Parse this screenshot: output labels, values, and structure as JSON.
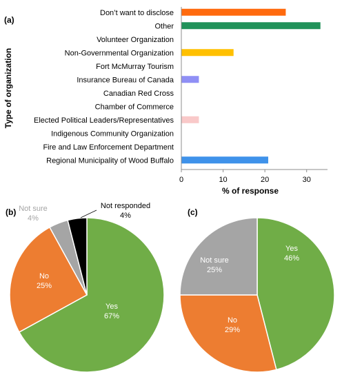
{
  "panels": {
    "a": {
      "label": "(a)",
      "chart_data": {
        "type": "bar",
        "orientation": "horizontal",
        "categories": [
          "Don’t want to disclose",
          "Other",
          "Volunteer Organization",
          "Non-Governmental Organization",
          "Fort McMurray Tourism",
          "Insurance Bureau of Canada",
          "Canadian Red Cross",
          "Chamber of Commerce",
          "Elected Political Leaders/Representatives",
          "Indigenous Community Organization",
          "Fire and Law Enforcement Department",
          "Regional Municipality of Wood Buffalo"
        ],
        "values": [
          25,
          33.3,
          0,
          12.5,
          0,
          4.2,
          0,
          0,
          4.2,
          0,
          0,
          20.8
        ],
        "colors": [
          "#ff6a0e",
          "#21925a",
          "#cccccc",
          "#ffc000",
          "#cccccc",
          "#8f8ff5",
          "#cccccc",
          "#cccccc",
          "#f9c9c9",
          "#cccccc",
          "#cccccc",
          "#3f92ea"
        ],
        "xlabel": "% of response",
        "ylabel": "Type of organization",
        "xlim": [
          0,
          35
        ],
        "xticks": [
          0,
          10,
          20,
          30
        ],
        "grid": false
      }
    },
    "b": {
      "label": "(b)",
      "chart_data": {
        "type": "pie",
        "slices": [
          {
            "name": "Yes",
            "percent_label": "67%",
            "value": 67,
            "color": "#70ad47",
            "text_color": "#ffffff"
          },
          {
            "name": "No",
            "percent_label": "25%",
            "value": 25,
            "color": "#ed7d31",
            "text_color": "#ffffff"
          },
          {
            "name": "Not sure",
            "percent_label": "4%",
            "value": 4,
            "color": "#a5a5a5",
            "text_color": "#a5a5a5"
          },
          {
            "name": "Not responded",
            "percent_label": "4%",
            "value": 4,
            "color": "#000000",
            "text_color": "#000000"
          }
        ]
      }
    },
    "c": {
      "label": "(c)",
      "chart_data": {
        "type": "pie",
        "slices": [
          {
            "name": "Yes",
            "percent_label": "46%",
            "value": 46,
            "color": "#70ad47",
            "text_color": "#ffffff"
          },
          {
            "name": "No",
            "percent_label": "29%",
            "value": 29,
            "color": "#ed7d31",
            "text_color": "#ffffff"
          },
          {
            "name": "Not sure",
            "percent_label": "25%",
            "value": 25,
            "color": "#a5a5a5",
            "text_color": "#ffffff"
          }
        ]
      }
    }
  }
}
